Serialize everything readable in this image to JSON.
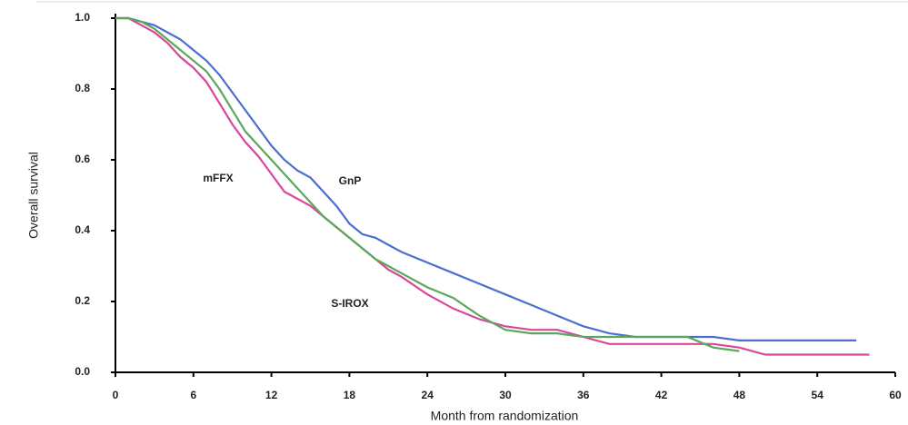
{
  "chart_data": {
    "type": "line",
    "x_label": "Month from randomization",
    "y_label": "Overall survival",
    "x": [
      0,
      1,
      2,
      3,
      4,
      5,
      6,
      7,
      8,
      9,
      10,
      11,
      12,
      13,
      14,
      15,
      16,
      17,
      18,
      19,
      20,
      21,
      22,
      24,
      26,
      28,
      30,
      32,
      34,
      36,
      38,
      40,
      42,
      44,
      46,
      48,
      50,
      52,
      54,
      56,
      57,
      58
    ],
    "series": [
      {
        "name": "GnP",
        "color": "#4a6fcf",
        "values": [
          1.0,
          1.0,
          0.99,
          0.98,
          0.96,
          0.94,
          0.91,
          0.88,
          0.84,
          0.79,
          0.74,
          0.69,
          0.64,
          0.6,
          0.57,
          0.55,
          0.51,
          0.47,
          0.42,
          0.39,
          0.38,
          0.36,
          0.34,
          0.31,
          0.28,
          0.25,
          0.22,
          0.19,
          0.16,
          0.13,
          0.11,
          0.1,
          0.1,
          0.1,
          0.1,
          0.09,
          0.09,
          0.09,
          0.09,
          0.09,
          0.09,
          null
        ]
      },
      {
        "name": "mFFX",
        "color": "#d9479a",
        "values": [
          1.0,
          1.0,
          0.98,
          0.96,
          0.93,
          0.89,
          0.86,
          0.82,
          0.76,
          0.7,
          0.65,
          0.61,
          0.56,
          0.51,
          0.49,
          0.47,
          0.44,
          0.41,
          0.38,
          0.35,
          0.32,
          0.29,
          0.27,
          0.22,
          0.18,
          0.15,
          0.13,
          0.12,
          0.12,
          0.1,
          0.08,
          0.08,
          0.08,
          0.08,
          0.08,
          0.07,
          0.05,
          0.05,
          0.05,
          0.05,
          0.05,
          0.05
        ]
      },
      {
        "name": "S-IROX",
        "color": "#5aa85a",
        "values": [
          1.0,
          1.0,
          0.99,
          0.97,
          0.94,
          0.91,
          0.88,
          0.85,
          0.8,
          0.74,
          0.68,
          0.64,
          0.6,
          0.56,
          0.52,
          0.48,
          0.44,
          0.41,
          0.38,
          0.35,
          0.32,
          0.3,
          0.28,
          0.24,
          0.21,
          0.16,
          0.12,
          0.11,
          0.11,
          0.1,
          0.1,
          0.1,
          0.1,
          0.1,
          0.07,
          0.06,
          null,
          null,
          null,
          null,
          null,
          null
        ]
      }
    ],
    "xlim": [
      0,
      60
    ],
    "xticks": [
      0,
      6,
      12,
      18,
      24,
      30,
      36,
      42,
      48,
      54,
      60
    ],
    "ylim": [
      0,
      1
    ],
    "yticks": [
      {
        "value": 0,
        "label": "0.0"
      },
      0.2,
      0.4,
      0.6,
      0.8,
      {
        "value": 1,
        "label": "1.0"
      }
    ]
  }
}
